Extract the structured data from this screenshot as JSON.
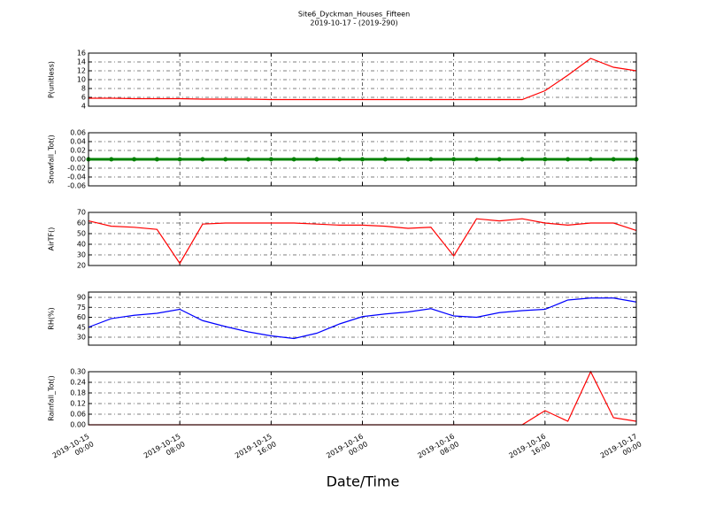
{
  "chart_data": [
    {
      "type": "line",
      "title": "Site6_Dyckman_Houses_Fifteen",
      "subtitle": "2019-10-17 - (2019-290)",
      "ylabel": "P(unitless)",
      "ylim": [
        4,
        16
      ],
      "yticks": [
        4,
        6,
        8,
        10,
        12,
        14,
        16
      ],
      "grid": true,
      "x": [
        "2019-10-15 00:00",
        "2019-10-15 02:00",
        "2019-10-15 04:00",
        "2019-10-15 06:00",
        "2019-10-15 08:00",
        "2019-10-15 10:00",
        "2019-10-15 12:00",
        "2019-10-15 14:00",
        "2019-10-15 16:00",
        "2019-10-15 18:00",
        "2019-10-15 20:00",
        "2019-10-15 22:00",
        "2019-10-16 00:00",
        "2019-10-16 02:00",
        "2019-10-16 04:00",
        "2019-10-16 06:00",
        "2019-10-16 08:00",
        "2019-10-16 10:00",
        "2019-10-16 12:00",
        "2019-10-16 14:00",
        "2019-10-16 16:00",
        "2019-10-16 18:00",
        "2019-10-16 20:00",
        "2019-10-16 22:00",
        "2019-10-17 00:00"
      ],
      "series": [
        {
          "color": "#ff0000",
          "values": [
            5.8,
            5.8,
            5.7,
            5.7,
            5.7,
            5.6,
            5.6,
            5.6,
            5.5,
            5.5,
            5.5,
            5.5,
            5.5,
            5.5,
            5.5,
            5.5,
            5.5,
            5.5,
            5.5,
            5.5,
            7.5,
            11,
            14.8,
            12.8,
            12.0
          ]
        }
      ]
    },
    {
      "type": "line",
      "ylabel": "Snowfall_Tot()",
      "ylim": [
        -0.06,
        0.06
      ],
      "yticks": [
        -0.06,
        -0.04,
        -0.02,
        {
          "value": 0,
          "label": "0.00"
        },
        0.02,
        0.04,
        0.06
      ],
      "grid": true,
      "markers": true,
      "x": [
        "2019-10-15 00:00",
        "2019-10-15 02:00",
        "2019-10-15 04:00",
        "2019-10-15 06:00",
        "2019-10-15 08:00",
        "2019-10-15 10:00",
        "2019-10-15 12:00",
        "2019-10-15 14:00",
        "2019-10-15 16:00",
        "2019-10-15 18:00",
        "2019-10-15 20:00",
        "2019-10-15 22:00",
        "2019-10-16 00:00",
        "2019-10-16 02:00",
        "2019-10-16 04:00",
        "2019-10-16 06:00",
        "2019-10-16 08:00",
        "2019-10-16 10:00",
        "2019-10-16 12:00",
        "2019-10-16 14:00",
        "2019-10-16 16:00",
        "2019-10-16 18:00",
        "2019-10-16 20:00",
        "2019-10-16 22:00",
        "2019-10-17 00:00"
      ],
      "series": [
        {
          "color": "#008000",
          "values": [
            0,
            0,
            0,
            0,
            0,
            0,
            0,
            0,
            0,
            0,
            0,
            0,
            0,
            0,
            0,
            0,
            0,
            0,
            0,
            0,
            0,
            0,
            0,
            0,
            0
          ]
        }
      ]
    },
    {
      "type": "line",
      "ylabel": "AirTF()",
      "ylim": [
        20,
        70
      ],
      "yticks": [
        20,
        30,
        40,
        50,
        60,
        70
      ],
      "grid": true,
      "x": [
        "2019-10-15 00:00",
        "2019-10-15 02:00",
        "2019-10-15 04:00",
        "2019-10-15 06:00",
        "2019-10-15 08:00",
        "2019-10-15 10:00",
        "2019-10-15 12:00",
        "2019-10-15 14:00",
        "2019-10-15 16:00",
        "2019-10-15 18:00",
        "2019-10-15 20:00",
        "2019-10-15 22:00",
        "2019-10-16 00:00",
        "2019-10-16 02:00",
        "2019-10-16 04:00",
        "2019-10-16 06:00",
        "2019-10-16 08:00",
        "2019-10-16 10:00",
        "2019-10-16 12:00",
        "2019-10-16 14:00",
        "2019-10-16 16:00",
        "2019-10-16 18:00",
        "2019-10-16 20:00",
        "2019-10-16 22:00",
        "2019-10-17 00:00"
      ],
      "series": [
        {
          "color": "#ff0000",
          "values": [
            62,
            57,
            56,
            54,
            22,
            59,
            60,
            60,
            60,
            60,
            59,
            58,
            58,
            57,
            55,
            56,
            29,
            64,
            62,
            64,
            60,
            58,
            60,
            60,
            53
          ]
        }
      ]
    },
    {
      "type": "line",
      "ylabel": "RH(%)",
      "ylim": [
        18,
        98
      ],
      "yticks": [
        30,
        45,
        60,
        75,
        90
      ],
      "grid": true,
      "x": [
        "2019-10-15 00:00",
        "2019-10-15 02:00",
        "2019-10-15 04:00",
        "2019-10-15 06:00",
        "2019-10-15 08:00",
        "2019-10-15 10:00",
        "2019-10-15 12:00",
        "2019-10-15 14:00",
        "2019-10-15 16:00",
        "2019-10-15 18:00",
        "2019-10-15 20:00",
        "2019-10-15 22:00",
        "2019-10-16 00:00",
        "2019-10-16 02:00",
        "2019-10-16 04:00",
        "2019-10-16 06:00",
        "2019-10-16 08:00",
        "2019-10-16 10:00",
        "2019-10-16 12:00",
        "2019-10-16 14:00",
        "2019-10-16 16:00",
        "2019-10-16 18:00",
        "2019-10-16 20:00",
        "2019-10-16 22:00",
        "2019-10-17 00:00"
      ],
      "series": [
        {
          "color": "#0000ff",
          "values": [
            45,
            58,
            63,
            66,
            72,
            55,
            46,
            38,
            32,
            28,
            36,
            50,
            61,
            65,
            68,
            73,
            62,
            60,
            67,
            70,
            72,
            86,
            89,
            89,
            83
          ]
        }
      ]
    },
    {
      "type": "line",
      "ylabel": "Rainfall_Tot()",
      "xlabel": "Date/Time",
      "ylim": [
        0,
        0.3
      ],
      "yticks": [
        {
          "value": 0,
          "label": "0.00"
        },
        0.06,
        0.12,
        0.18,
        0.24,
        {
          "value": 0.3,
          "label": "0.30"
        }
      ],
      "grid": true,
      "xlim": [
        "2019-10-15 00:00",
        "2019-10-17 00:00"
      ],
      "xticks": [
        "2019-10-15 00:00",
        "2019-10-15 08:00",
        "2019-10-15 16:00",
        "2019-10-16 00:00",
        "2019-10-16 08:00",
        "2019-10-16 16:00",
        "2019-10-17 00:00"
      ],
      "x": [
        "2019-10-15 00:00",
        "2019-10-15 02:00",
        "2019-10-15 04:00",
        "2019-10-15 06:00",
        "2019-10-15 08:00",
        "2019-10-15 10:00",
        "2019-10-15 12:00",
        "2019-10-15 14:00",
        "2019-10-15 16:00",
        "2019-10-15 18:00",
        "2019-10-15 20:00",
        "2019-10-15 22:00",
        "2019-10-16 00:00",
        "2019-10-16 02:00",
        "2019-10-16 04:00",
        "2019-10-16 06:00",
        "2019-10-16 08:00",
        "2019-10-16 10:00",
        "2019-10-16 12:00",
        "2019-10-16 14:00",
        "2019-10-16 16:00",
        "2019-10-16 18:00",
        "2019-10-16 20:00",
        "2019-10-16 22:00",
        "2019-10-17 00:00"
      ],
      "series": [
        {
          "color": "#ff0000",
          "values": [
            0,
            0,
            0,
            0,
            0,
            0,
            0,
            0,
            0,
            0,
            0,
            0,
            0,
            0,
            0,
            0,
            0,
            0,
            0,
            0,
            0.08,
            0.02,
            0.3,
            0.04,
            0.02
          ]
        }
      ]
    }
  ]
}
